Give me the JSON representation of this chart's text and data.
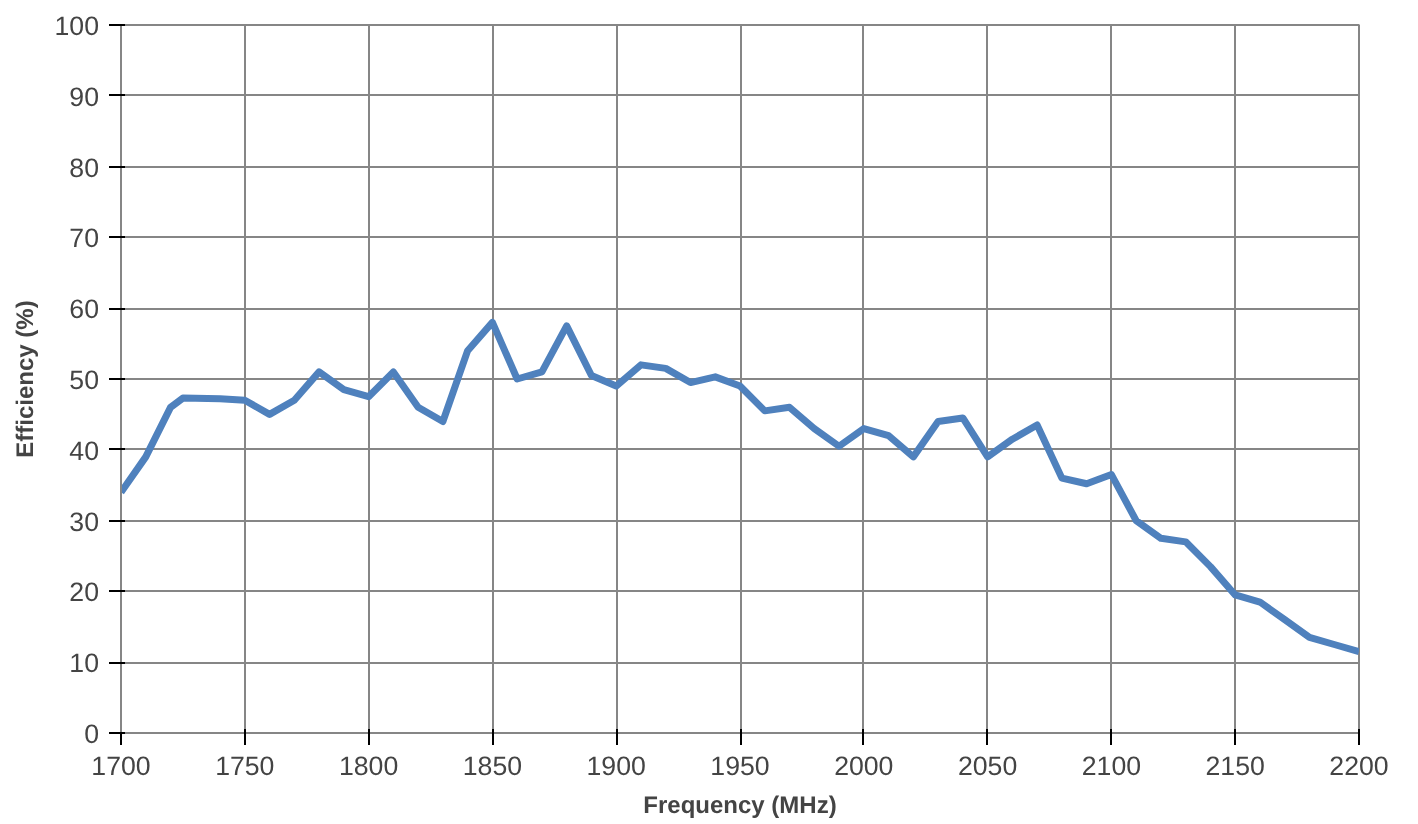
{
  "chart_data": {
    "type": "line",
    "xlabel": "Frequency (MHz)",
    "ylabel": "Efficiency (%)",
    "x": [
      1700,
      1710,
      1720,
      1725,
      1740,
      1750,
      1760,
      1770,
      1780,
      1790,
      1800,
      1810,
      1820,
      1830,
      1840,
      1850,
      1860,
      1870,
      1880,
      1890,
      1900,
      1910,
      1920,
      1930,
      1940,
      1950,
      1960,
      1970,
      1980,
      1990,
      2000,
      2010,
      2020,
      2030,
      2040,
      2050,
      2060,
      2070,
      2080,
      2090,
      2100,
      2110,
      2120,
      2130,
      2140,
      2150,
      2160,
      2170,
      2180,
      2190,
      2200
    ],
    "series": [
      {
        "color": "#4f81bd",
        "values": [
          34,
          39,
          46,
          47.3,
          47.2,
          47,
          45,
          47,
          51,
          48.5,
          47.5,
          51,
          46,
          44,
          54,
          58,
          50,
          51,
          57.5,
          50.5,
          49,
          52,
          51.5,
          49.5,
          50.3,
          49,
          45.5,
          46,
          43,
          40.5,
          43,
          42,
          39,
          44,
          44.5,
          39,
          41.5,
          43.5,
          36,
          35.2,
          36.5,
          30,
          27.5,
          27,
          23.5,
          19.5,
          18.5,
          16,
          13.5,
          12.5,
          11.5
        ]
      }
    ],
    "xlim": [
      1700,
      2200
    ],
    "ylim": [
      0,
      100
    ],
    "xticks": [
      1700,
      1750,
      1800,
      1850,
      1900,
      1950,
      2000,
      2050,
      2100,
      2150,
      2200
    ],
    "yticks": [
      0,
      10,
      20,
      30,
      40,
      50,
      60,
      70,
      80,
      90,
      100
    ],
    "grid": true,
    "marker": "none",
    "line_style": "solid"
  }
}
